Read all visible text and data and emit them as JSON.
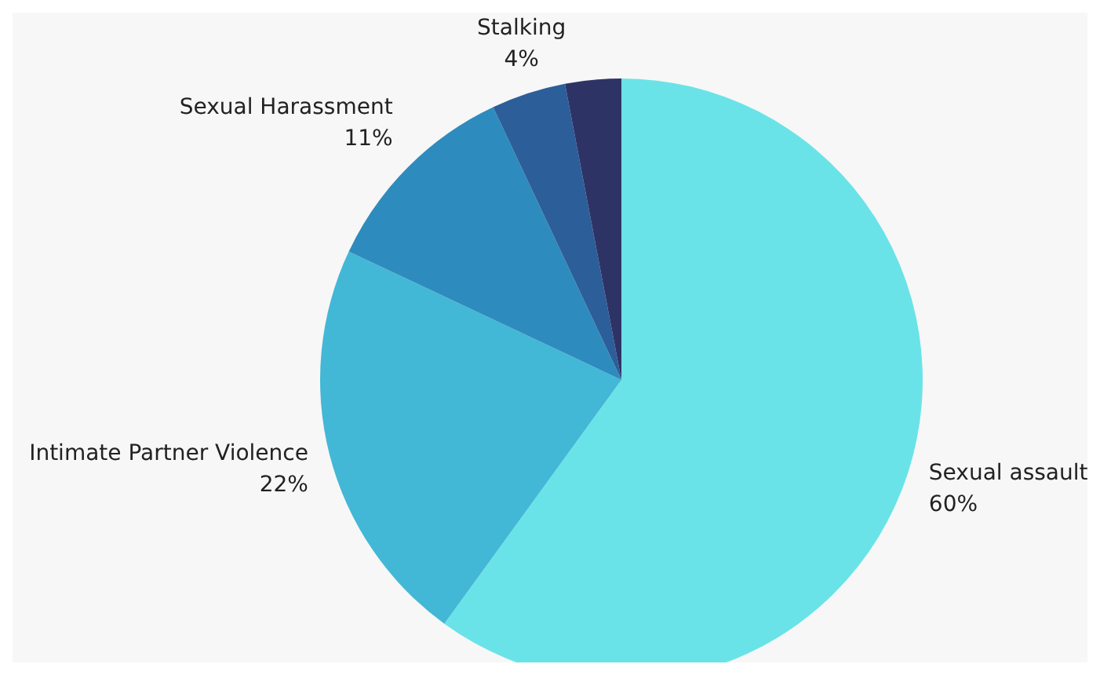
{
  "chart_data": {
    "type": "pie",
    "categories": [
      "Sexual assault",
      "Intimate Partner Violence",
      "Sexual Harassment",
      "Stalking",
      null
    ],
    "values": [
      60,
      22,
      11,
      4,
      3
    ],
    "value_labels": [
      "60%",
      "22%",
      "11%",
      "4%",
      null
    ],
    "colors": [
      "#6ae3e8",
      "#43b7d6",
      "#2e8bbd",
      "#2c5e99",
      "#2e3366"
    ]
  }
}
